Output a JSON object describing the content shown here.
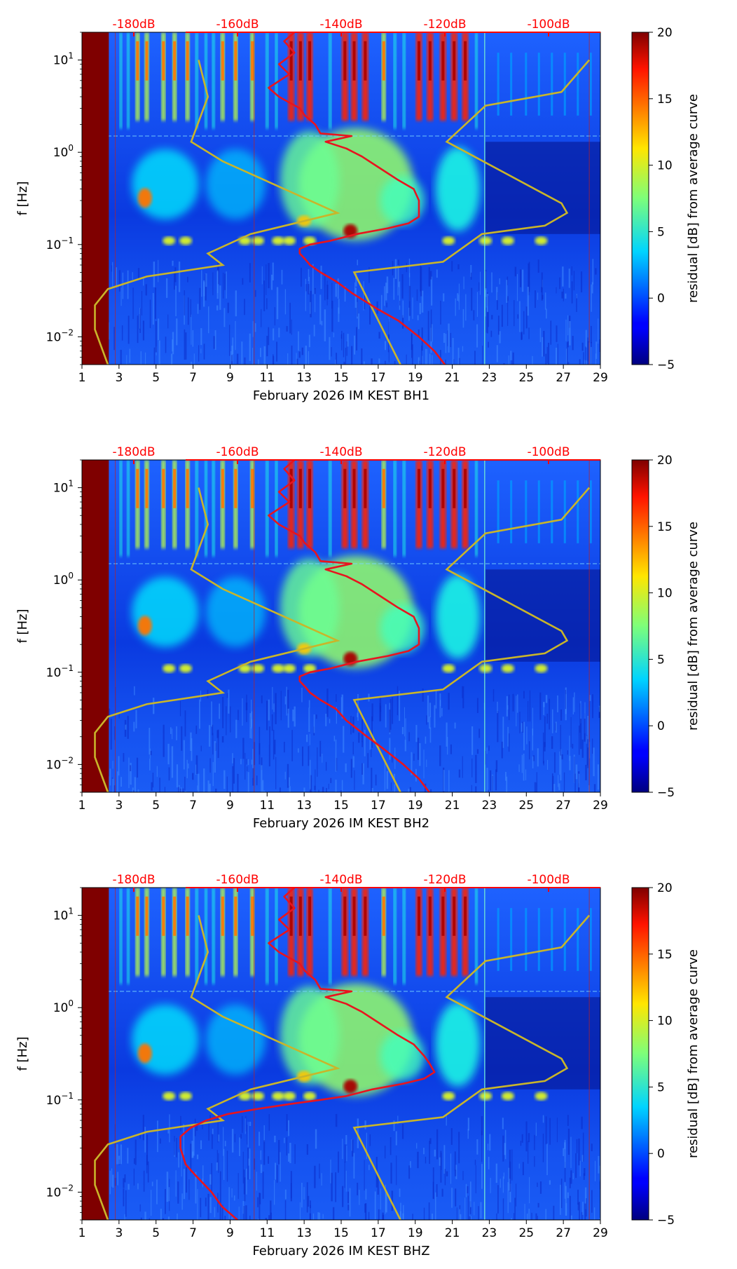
{
  "colorbar": {
    "label": "residual [dB] from average curve",
    "ticks": [
      "20",
      "15",
      "10",
      "5",
      "0",
      "−5"
    ],
    "range": [
      -5,
      20
    ],
    "colormap": "jet"
  },
  "shared_axes": {
    "ylabel": "f [Hz]",
    "yticks": [
      {
        "base": "10",
        "exp": "1"
      },
      {
        "base": "10",
        "exp": "0"
      },
      {
        "base": "10",
        "exp": "−1"
      },
      {
        "base": "10",
        "exp": "−2"
      }
    ],
    "xticks": [
      "1",
      "3",
      "5",
      "7",
      "9",
      "11",
      "13",
      "15",
      "17",
      "19",
      "21",
      "23",
      "25",
      "27",
      "29"
    ],
    "top_ticks": [
      "-180dB",
      "-160dB",
      "-140dB",
      "-120dB",
      "-100dB"
    ]
  },
  "colors": {
    "median_curve": "#e8141e",
    "noise_model": "#c9b52a",
    "top_axis": "#ff0000"
  },
  "chart_data": [
    {
      "type": "heatmap",
      "title": "",
      "xlabel": "February 2026 IM KEST  BH1",
      "ylabel": "f [Hz]",
      "x_range": [
        1,
        29
      ],
      "y_range_hz": [
        0.005,
        20
      ],
      "y_scale": "log",
      "top_axis_range_db": [
        -190,
        -90
      ],
      "median_curve": {
        "f_hz": [
          20,
          16,
          12,
          9,
          7,
          5,
          4,
          3,
          2.5,
          2,
          1.6,
          1.5,
          1.3,
          1.1,
          0.9,
          0.7,
          0.5,
          0.4,
          0.3,
          0.25,
          0.2,
          0.17,
          0.15,
          0.13,
          0.11,
          0.1,
          0.09,
          0.08,
          0.07,
          0.06,
          0.05,
          0.04,
          0.03,
          0.02,
          0.015,
          0.01,
          0.007,
          0.005
        ],
        "db": [
          -149,
          -151,
          -149,
          -152,
          -150,
          -154,
          -152,
          -148,
          -147,
          -145,
          -144,
          -138,
          -143,
          -139,
          -136,
          -133,
          -129,
          -126,
          -125,
          -125,
          -125,
          -127,
          -131,
          -137,
          -142,
          -146,
          -148,
          -148,
          -147,
          -146,
          -144,
          -141,
          -138,
          -133,
          -129,
          -125,
          -122,
          -120
        ]
      },
      "noise_model": {
        "f_hz": [
          10,
          4,
          1.3,
          0.8,
          0.22,
          0.13,
          0.08,
          0.06,
          0.045,
          0.033,
          0.022,
          0.012,
          0.005
        ],
        "day": [
          7.3,
          7.8,
          6.9,
          8.6,
          14.8,
          10.1,
          7.8,
          8.6,
          4.5,
          2.4,
          1.7,
          1.7,
          2.4
        ]
      },
      "high_noise_model": {
        "f_hz": [
          10,
          4.5,
          3.2,
          1.3,
          0.28,
          0.22,
          0.16,
          0.13,
          0.065,
          0.05,
          0.005
        ],
        "day": [
          28.4,
          26.9,
          22.8,
          20.7,
          26.9,
          27.2,
          26.0,
          22.6,
          20.5,
          15.7,
          18.2
        ]
      }
    },
    {
      "type": "heatmap",
      "title": "",
      "xlabel": "February 2026 IM KEST  BH2",
      "ylabel": "f [Hz]",
      "x_range": [
        1,
        29
      ],
      "y_range_hz": [
        0.005,
        20
      ],
      "y_scale": "log",
      "top_axis_range_db": [
        -190,
        -90
      ],
      "median_curve": {
        "f_hz": [
          20,
          16,
          12,
          9,
          7,
          5,
          4,
          3,
          2.5,
          2,
          1.6,
          1.5,
          1.3,
          1.1,
          0.9,
          0.7,
          0.5,
          0.4,
          0.3,
          0.25,
          0.2,
          0.17,
          0.15,
          0.13,
          0.11,
          0.1,
          0.09,
          0.08,
          0.07,
          0.06,
          0.05,
          0.04,
          0.03,
          0.02,
          0.015,
          0.01,
          0.007,
          0.005
        ],
        "db": [
          -149,
          -151,
          -149,
          -152,
          -150,
          -154,
          -152,
          -148,
          -147,
          -145,
          -144,
          -138,
          -143,
          -139,
          -136,
          -133,
          -129,
          -126,
          -125,
          -125,
          -125,
          -127,
          -131,
          -137,
          -142,
          -146,
          -148,
          -148,
          -147,
          -146,
          -144,
          -141,
          -139,
          -135,
          -132,
          -128,
          -125,
          -123
        ]
      },
      "noise_model": {
        "f_hz": [
          10,
          4,
          1.3,
          0.8,
          0.22,
          0.13,
          0.08,
          0.06,
          0.045,
          0.033,
          0.022,
          0.012,
          0.005
        ],
        "day": [
          7.3,
          7.8,
          6.9,
          8.6,
          14.8,
          10.1,
          7.8,
          8.6,
          4.5,
          2.4,
          1.7,
          1.7,
          2.4
        ]
      },
      "high_noise_model": {
        "f_hz": [
          10,
          4.5,
          3.2,
          1.3,
          0.28,
          0.22,
          0.16,
          0.13,
          0.065,
          0.05,
          0.005
        ],
        "day": [
          28.4,
          26.9,
          22.8,
          20.7,
          26.9,
          27.2,
          26.0,
          22.6,
          20.5,
          15.7,
          18.2
        ]
      }
    },
    {
      "type": "heatmap",
      "title": "",
      "xlabel": "February 2026 IM KEST  BHZ",
      "ylabel": "f [Hz]",
      "x_range": [
        1,
        29
      ],
      "y_range_hz": [
        0.005,
        20
      ],
      "y_scale": "log",
      "top_axis_range_db": [
        -190,
        -90
      ],
      "median_curve": {
        "f_hz": [
          20,
          16,
          12,
          9,
          7,
          5,
          4,
          3,
          2.5,
          2,
          1.6,
          1.5,
          1.3,
          1.1,
          0.9,
          0.7,
          0.5,
          0.4,
          0.3,
          0.25,
          0.2,
          0.17,
          0.15,
          0.13,
          0.11,
          0.1,
          0.09,
          0.08,
          0.07,
          0.06,
          0.05,
          0.04,
          0.03,
          0.02,
          0.015,
          0.01,
          0.007,
          0.005
        ],
        "db": [
          -149,
          -151,
          -149,
          -152,
          -150,
          -154,
          -152,
          -148,
          -147,
          -145,
          -144,
          -138,
          -143,
          -139,
          -136,
          -133,
          -129,
          -126,
          -124,
          -123,
          -122,
          -124,
          -128,
          -134,
          -139,
          -144,
          -150,
          -156,
          -162,
          -166,
          -169,
          -171,
          -171,
          -170,
          -168,
          -165,
          -163,
          -160
        ]
      },
      "noise_model": {
        "f_hz": [
          10,
          4,
          1.3,
          0.8,
          0.22,
          0.13,
          0.08,
          0.06,
          0.045,
          0.033,
          0.022,
          0.012,
          0.005
        ],
        "day": [
          7.3,
          7.8,
          6.9,
          8.6,
          14.8,
          10.1,
          7.8,
          8.6,
          4.5,
          2.4,
          1.7,
          1.7,
          2.4
        ]
      },
      "high_noise_model": {
        "f_hz": [
          10,
          4.5,
          3.2,
          1.3,
          0.28,
          0.22,
          0.16,
          0.13,
          0.065,
          0.05,
          0.005
        ],
        "day": [
          28.4,
          26.9,
          22.8,
          20.7,
          26.9,
          27.2,
          26.0,
          22.6,
          20.5,
          15.7,
          18.2
        ]
      }
    }
  ]
}
